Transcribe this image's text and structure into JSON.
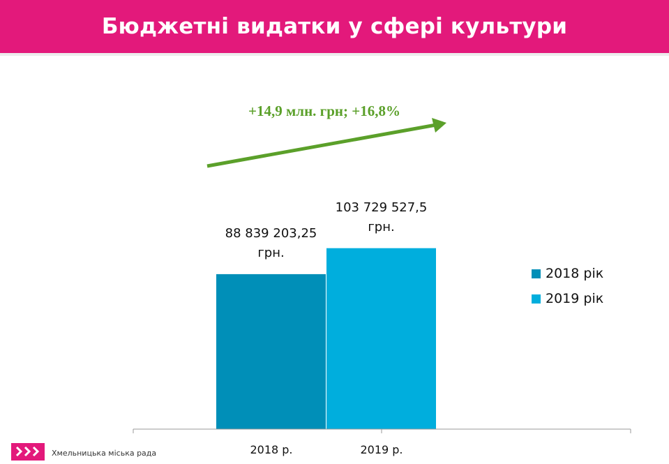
{
  "header": {
    "title": "Бюджетні видатки у сфері культури"
  },
  "chart_data": {
    "type": "bar",
    "title": "Бюджетні видатки у сфері культури",
    "categories": [
      "2018 р.",
      "2019 р."
    ],
    "series": [
      {
        "name": "2018 рік",
        "color": "#008fb8",
        "values": [
          88839203.25,
          null
        ]
      },
      {
        "name": "2019 рік",
        "color": "#00aedd",
        "values": [
          null,
          103729527.5
        ]
      }
    ],
    "data_labels": [
      {
        "value_text": "88 839 203,25",
        "unit": "грн."
      },
      {
        "value_text": "103 729 527,5",
        "unit": "грн."
      }
    ],
    "annotation": "+14,9 млн. грн; +16,8%",
    "annotation_color": "#5ba02a",
    "legend_position": "right",
    "grid": false,
    "ylim": [
      0,
      230000000
    ]
  },
  "footer": {
    "logo_text": "Хмельницька міська рада",
    "logo_icon": "city-council-logo-icon"
  }
}
